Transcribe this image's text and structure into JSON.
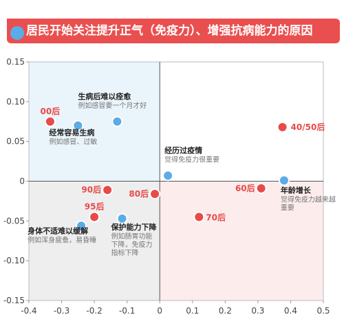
{
  "title": "居民开始关注提升正气（免疫力）、增强抗病能力的原因",
  "colors": {
    "accent_red": "#e84a4a",
    "accent_blue": "#5aace8",
    "q_topleft": "#eaf4fb",
    "q_bottomleft": "#eeeeee",
    "q_bottomright": "#fcecec"
  },
  "chart_data": {
    "type": "scatter",
    "xlim": [
      -0.4,
      0.5
    ],
    "ylim": [
      -0.15,
      0.15
    ],
    "x_ticks": [
      "-0.4",
      "-0.3",
      "-0.2",
      "-0.1",
      "0",
      "0.1",
      "0.2",
      "0.3",
      "0.4",
      "0.5"
    ],
    "y_ticks": [
      "0.15",
      "0.10",
      "0.05",
      "0",
      "-0.05",
      "-0.10",
      "-0.15"
    ],
    "grid": false,
    "points": [
      {
        "group": "age",
        "x": -0.335,
        "y": 0.075,
        "label": "00后"
      },
      {
        "group": "age",
        "x": 0.375,
        "y": 0.068,
        "label": "40/50后"
      },
      {
        "group": "age",
        "x": 0.31,
        "y": -0.009,
        "label": "60后"
      },
      {
        "group": "age",
        "x": 0.12,
        "y": -0.045,
        "label": "70后"
      },
      {
        "group": "age",
        "x": -0.015,
        "y": -0.016,
        "label": "80后"
      },
      {
        "group": "age",
        "x": -0.16,
        "y": -0.011,
        "label": "90后"
      },
      {
        "group": "age",
        "x": -0.2,
        "y": -0.045,
        "label": "95后"
      },
      {
        "group": "reason",
        "x": -0.25,
        "y": 0.07,
        "title": "经常容易生病",
        "subtitle": "例如感冒、过敏"
      },
      {
        "group": "reason",
        "x": -0.13,
        "y": 0.075,
        "title": "生病后难以痊愈",
        "subtitle": "例如感冒要一个月才好"
      },
      {
        "group": "reason",
        "x": 0.025,
        "y": 0.007,
        "title": "经历过疫情",
        "subtitle": "觉得免疫力很重要"
      },
      {
        "group": "reason",
        "x": 0.38,
        "y": 0.001,
        "title": "年龄增长",
        "subtitle": "觉得免疫力越来越重要"
      },
      {
        "group": "reason",
        "x": -0.24,
        "y": -0.056,
        "title": "身体不适难以缓解",
        "subtitle": "例如浑身疲惫，易昏睡"
      },
      {
        "group": "reason",
        "x": -0.115,
        "y": -0.047,
        "title": "保护能力下降",
        "subtitle": "例如肠胃功能下降，免疫力指标下降"
      }
    ]
  }
}
